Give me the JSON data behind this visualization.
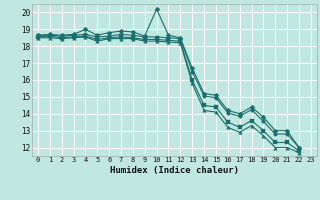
{
  "title": "",
  "xlabel": "Humidex (Indice chaleur)",
  "ylabel": "",
  "bg_color": "#c0e8e0",
  "grid_color": "#ffffff",
  "line_color": "#1a6e6e",
  "xlim": [
    -0.5,
    23.5
  ],
  "ylim": [
    11.5,
    20.5
  ],
  "xticks": [
    0,
    1,
    2,
    3,
    4,
    5,
    6,
    7,
    8,
    9,
    10,
    11,
    12,
    13,
    14,
    15,
    16,
    17,
    18,
    19,
    20,
    21,
    22,
    23
  ],
  "yticks": [
    12,
    13,
    14,
    15,
    16,
    17,
    18,
    19,
    20
  ],
  "series": [
    [
      18.65,
      18.7,
      18.65,
      18.7,
      19.0,
      18.65,
      18.8,
      18.9,
      18.85,
      18.6,
      20.2,
      18.65,
      18.5,
      16.7,
      15.2,
      15.1,
      14.2,
      14.0,
      14.4,
      13.8,
      13.0,
      13.0,
      12.0,
      null
    ],
    [
      18.65,
      18.65,
      18.6,
      18.65,
      18.7,
      18.55,
      18.6,
      18.7,
      18.65,
      18.55,
      18.55,
      18.5,
      18.45,
      16.5,
      15.05,
      14.95,
      14.05,
      13.85,
      14.25,
      13.55,
      12.8,
      12.8,
      12.0,
      null
    ],
    [
      18.55,
      18.6,
      18.5,
      18.55,
      18.6,
      18.4,
      18.5,
      18.55,
      18.5,
      18.4,
      18.4,
      18.35,
      18.3,
      16.0,
      14.5,
      14.4,
      13.5,
      13.2,
      13.6,
      13.0,
      12.3,
      12.3,
      11.8,
      null
    ],
    [
      18.5,
      18.5,
      18.45,
      18.5,
      18.55,
      18.3,
      18.45,
      18.45,
      18.45,
      18.3,
      18.3,
      18.25,
      18.2,
      15.8,
      14.2,
      14.1,
      13.2,
      12.9,
      13.3,
      12.7,
      12.0,
      12.0,
      11.7,
      null
    ]
  ]
}
